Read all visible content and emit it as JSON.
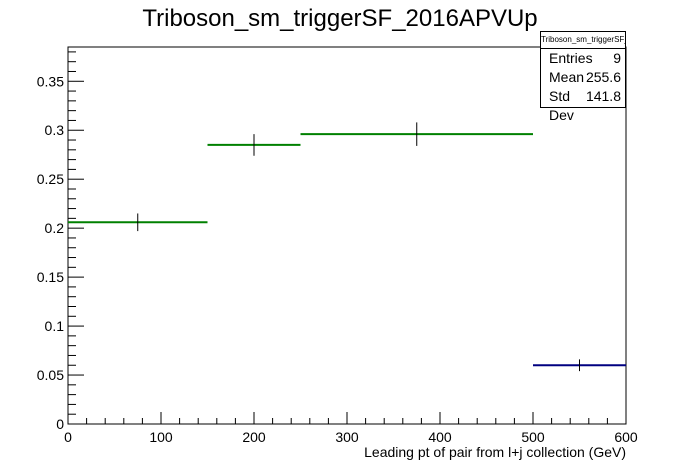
{
  "chart_data": {
    "type": "histogram",
    "title": "Triboson_sm_triggerSF_2016APVUp",
    "xlabel": "Leading pt of pair from l+j collection (GeV)",
    "ylabel": "",
    "xlim": [
      0,
      600
    ],
    "ylim": [
      0,
      0.385
    ],
    "x_ticks": [
      0,
      100,
      200,
      300,
      400,
      500,
      600
    ],
    "x_tick_labels": [
      "0",
      "100",
      "200",
      "300",
      "400",
      "500",
      "600"
    ],
    "y_ticks": [
      0,
      0.05,
      0.1,
      0.15,
      0.2,
      0.25,
      0.3,
      0.35
    ],
    "y_tick_labels": [
      "0",
      "0.05",
      "0.1",
      "0.15",
      "0.2",
      "0.25",
      "0.3",
      "0.35"
    ],
    "grid": false,
    "legend": "none",
    "series": [
      {
        "color": "#008000",
        "bins": [
          {
            "xlow": 0,
            "xhigh": 150,
            "value": 0.206,
            "error": 0.009
          },
          {
            "xlow": 150,
            "xhigh": 250,
            "value": 0.285,
            "error": 0.011
          },
          {
            "xlow": 250,
            "xhigh": 500,
            "value": 0.296,
            "error": 0.012
          }
        ]
      },
      {
        "color": "#000080",
        "bins": [
          {
            "xlow": 500,
            "xhigh": 600,
            "value": 0.06,
            "error": 0.006
          }
        ]
      }
    ]
  },
  "stats": {
    "title": "Triboson_sm_triggerSF_2016APVUp",
    "rows": [
      {
        "label": "Entries",
        "value": "9"
      },
      {
        "label": "Mean",
        "value": "255.6"
      },
      {
        "label": "Std Dev",
        "value": "141.8"
      }
    ]
  }
}
